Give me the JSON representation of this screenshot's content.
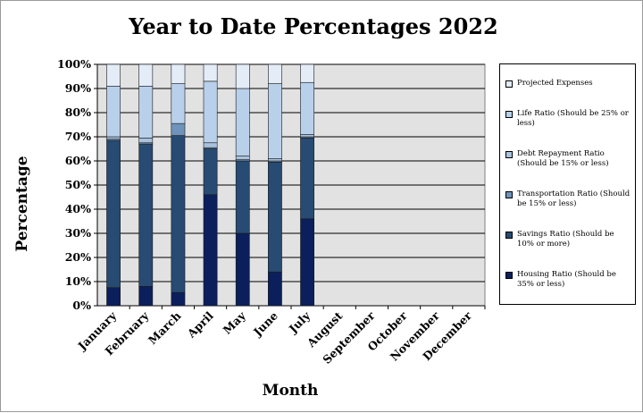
{
  "chart_data": {
    "type": "bar",
    "stacked": true,
    "percent_stacked": true,
    "title": "Year to Date Percentages 2022",
    "xlabel": "Month",
    "ylabel": "Percentage",
    "ylim": [
      0,
      100
    ],
    "yticks": [
      "0%",
      "10%",
      "20%",
      "30%",
      "40%",
      "50%",
      "60%",
      "70%",
      "80%",
      "90%",
      "100%"
    ],
    "grid": true,
    "legend_position": "right",
    "categories": [
      "January",
      "February",
      "March",
      "April",
      "May",
      "June",
      "July",
      "August",
      "September",
      "October",
      "November",
      "December"
    ],
    "series": [
      {
        "name": "Housing Ratio (Should be 35% or less)",
        "color": "#0b1f5c",
        "values": [
          7.5,
          8,
          5.5,
          46,
          30,
          14,
          36,
          null,
          null,
          null,
          null,
          null
        ]
      },
      {
        "name": "Savings Ratio (Should be 10% or more)",
        "color": "#274b72",
        "values": [
          61,
          59,
          65,
          19,
          30,
          45.5,
          33.5,
          null,
          null,
          null,
          null,
          null
        ]
      },
      {
        "name": "Transportation Ratio (Should be 15% or less)",
        "color": "#6f93ba",
        "values": [
          0.5,
          0.5,
          5,
          0.5,
          0.5,
          0.5,
          0.5,
          null,
          null,
          null,
          null,
          null
        ]
      },
      {
        "name": "Debt Repayment Ratio (Should be 15% or less)",
        "color": "#a9c2de",
        "values": [
          1,
          2,
          0,
          2,
          1.5,
          1,
          1,
          null,
          null,
          null,
          null,
          null
        ]
      },
      {
        "name": "Life Ratio (Should be 25% or less)",
        "color": "#b9d0ea",
        "values": [
          21,
          21.5,
          16.5,
          25.5,
          28,
          31,
          21.5,
          null,
          null,
          null,
          null,
          null
        ]
      },
      {
        "name": "Projected Expenses",
        "color": "#e4ecf7",
        "values": [
          9,
          9,
          8,
          7,
          10,
          8,
          7.5,
          null,
          null,
          null,
          null,
          null
        ]
      }
    ],
    "legend_order": [
      5,
      4,
      3,
      2,
      1,
      0
    ],
    "plot_background": "#e2e2e2"
  }
}
